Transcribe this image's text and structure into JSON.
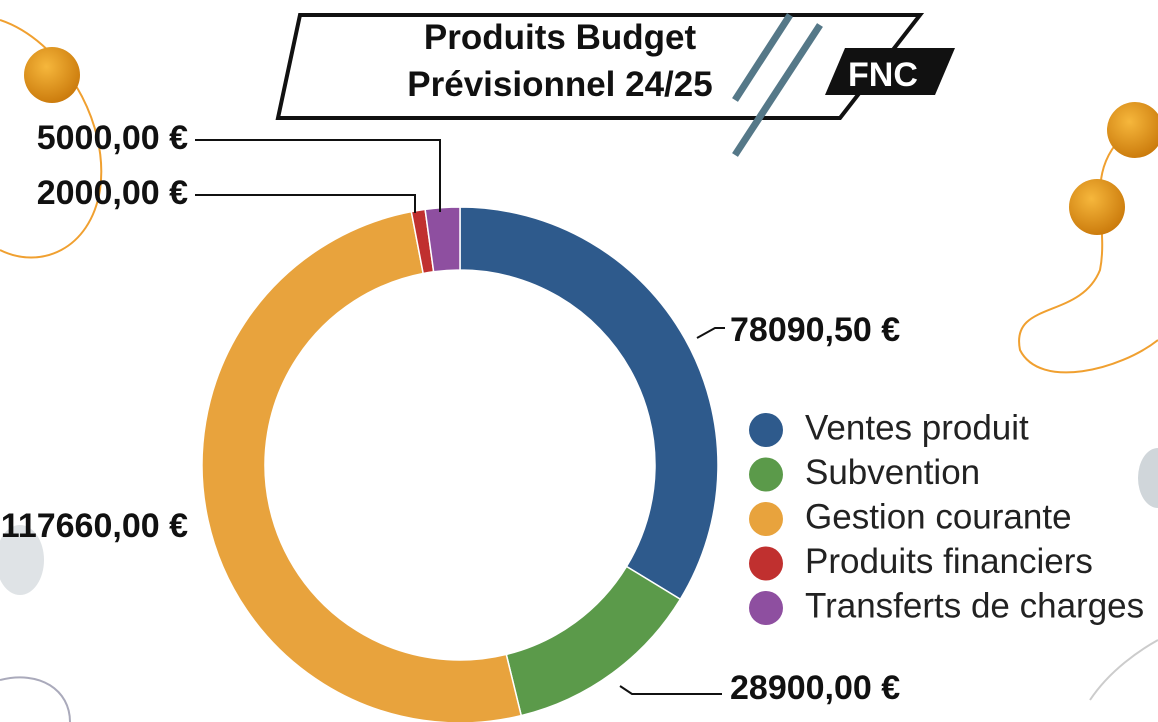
{
  "logo": "FNC",
  "chart_data": {
    "type": "donut",
    "title": "Produits Budget Prévisionnel 24/25",
    "categories": [
      "Ventes produit",
      "Subvention",
      "Gestion courante",
      "Produits financiers",
      "Transferts de charges"
    ],
    "values": [
      78090.5,
      28900,
      117660,
      2000,
      5000
    ],
    "value_labels": [
      "78090,50 €",
      "28900,00 €",
      "117660,00 €",
      "2000,00 €",
      "5000,00 €"
    ],
    "colors": [
      "#2e5a8c",
      "#5b9a4a",
      "#e8a33d",
      "#c0302f",
      "#8e4fa0"
    ],
    "legend": "right"
  }
}
